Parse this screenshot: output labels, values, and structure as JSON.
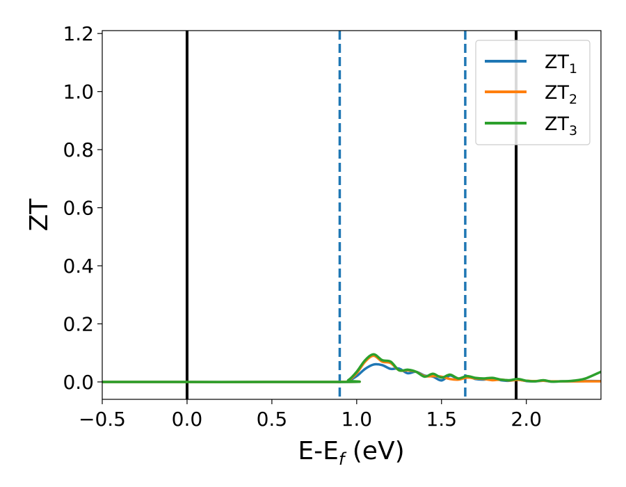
{
  "chart_data": {
    "type": "line",
    "xlabel": {
      "main": "E-E",
      "sub": "f",
      "rest": " (eV)"
    },
    "ylabel": "ZT",
    "xlim": [
      -0.5,
      2.44
    ],
    "ylim": [
      -0.06,
      1.21
    ],
    "xticks": [
      {
        "value": -0.5,
        "label": "−0.5"
      },
      {
        "value": 0.0,
        "label": "0.0"
      },
      {
        "value": 0.5,
        "label": "0.5"
      },
      {
        "value": 1.0,
        "label": "1.0"
      },
      {
        "value": 1.5,
        "label": "1.5"
      },
      {
        "value": 2.0,
        "label": "2.0"
      }
    ],
    "yticks": [
      {
        "value": 0.0,
        "label": "0.0"
      },
      {
        "value": 0.2,
        "label": "0.2"
      },
      {
        "value": 0.4,
        "label": "0.4"
      },
      {
        "value": 0.6,
        "label": "0.6"
      },
      {
        "value": 0.8,
        "label": "0.8"
      },
      {
        "value": 1.0,
        "label": "1.0"
      },
      {
        "value": 1.2,
        "label": "1.2"
      }
    ],
    "vlines": [
      {
        "x": 0.0,
        "style": "solid",
        "color": "#000000"
      },
      {
        "x": 1.94,
        "style": "solid",
        "color": "#000000"
      },
      {
        "x": 0.9,
        "style": "dashed",
        "color": "#1f77b4"
      },
      {
        "x": 1.64,
        "style": "dashed",
        "color": "#1f77b4"
      }
    ],
    "legend_position": "top-right",
    "series": [
      {
        "name": "ZT",
        "sub": "1",
        "color": "#1f77b4",
        "x": [
          -0.5,
          0.9,
          0.95,
          1.0,
          1.05,
          1.1,
          1.15,
          1.2,
          1.25,
          1.3,
          1.35,
          1.4,
          1.45,
          1.5,
          1.55,
          1.6,
          1.65,
          1.7,
          1.75,
          1.8,
          1.85,
          1.9,
          1.95,
          2.0,
          2.05,
          2.1,
          2.15,
          2.2,
          2.25,
          2.3,
          2.35,
          2.44
        ],
        "y": [
          0.0,
          0.0,
          0.004,
          0.02,
          0.045,
          0.06,
          0.058,
          0.045,
          0.046,
          0.03,
          0.035,
          0.022,
          0.018,
          0.005,
          0.022,
          0.01,
          0.02,
          0.01,
          0.008,
          0.012,
          0.006,
          0.004,
          0.008,
          0.003,
          0.002,
          0.004,
          0.001,
          0.002,
          0.002,
          0.002,
          0.003,
          0.003
        ]
      },
      {
        "name": "ZT",
        "sub": "2",
        "color": "#ff7f0e",
        "x": [
          -0.5,
          0.9,
          0.95,
          1.0,
          1.05,
          1.1,
          1.15,
          1.2,
          1.25,
          1.3,
          1.35,
          1.4,
          1.45,
          1.5,
          1.55,
          1.6,
          1.65,
          1.7,
          1.75,
          1.8,
          1.85,
          1.9,
          1.95,
          2.0,
          2.05,
          2.1,
          2.15,
          2.2,
          2.25,
          2.3,
          2.35,
          2.44
        ],
        "y": [
          0.0,
          0.0,
          0.005,
          0.03,
          0.07,
          0.09,
          0.07,
          0.065,
          0.04,
          0.04,
          0.035,
          0.02,
          0.02,
          0.018,
          0.01,
          0.008,
          0.015,
          0.012,
          0.01,
          0.006,
          0.008,
          0.005,
          0.007,
          0.004,
          0.003,
          0.004,
          0.002,
          0.002,
          0.002,
          0.002,
          0.002,
          0.002
        ]
      },
      {
        "name": "ZT",
        "sub": "3",
        "color": "#2ca02c",
        "x": [
          -0.5,
          0.9,
          0.95,
          1.0,
          1.05,
          1.1,
          1.15,
          1.2,
          1.25,
          1.3,
          1.35,
          1.4,
          1.45,
          1.5,
          1.55,
          1.6,
          1.65,
          1.7,
          1.75,
          1.8,
          1.85,
          1.9,
          1.95,
          2.0,
          2.05,
          2.1,
          2.15,
          2.2,
          2.25,
          2.3,
          2.35,
          2.44
        ],
        "y": [
          0.0,
          0.0,
          0.006,
          0.035,
          0.075,
          0.095,
          0.075,
          0.07,
          0.04,
          0.042,
          0.035,
          0.018,
          0.028,
          0.015,
          0.025,
          0.012,
          0.02,
          0.014,
          0.012,
          0.014,
          0.008,
          0.006,
          0.01,
          0.004,
          0.002,
          0.006,
          0.001,
          0.002,
          0.003,
          0.006,
          0.012,
          0.035
        ]
      }
    ]
  }
}
